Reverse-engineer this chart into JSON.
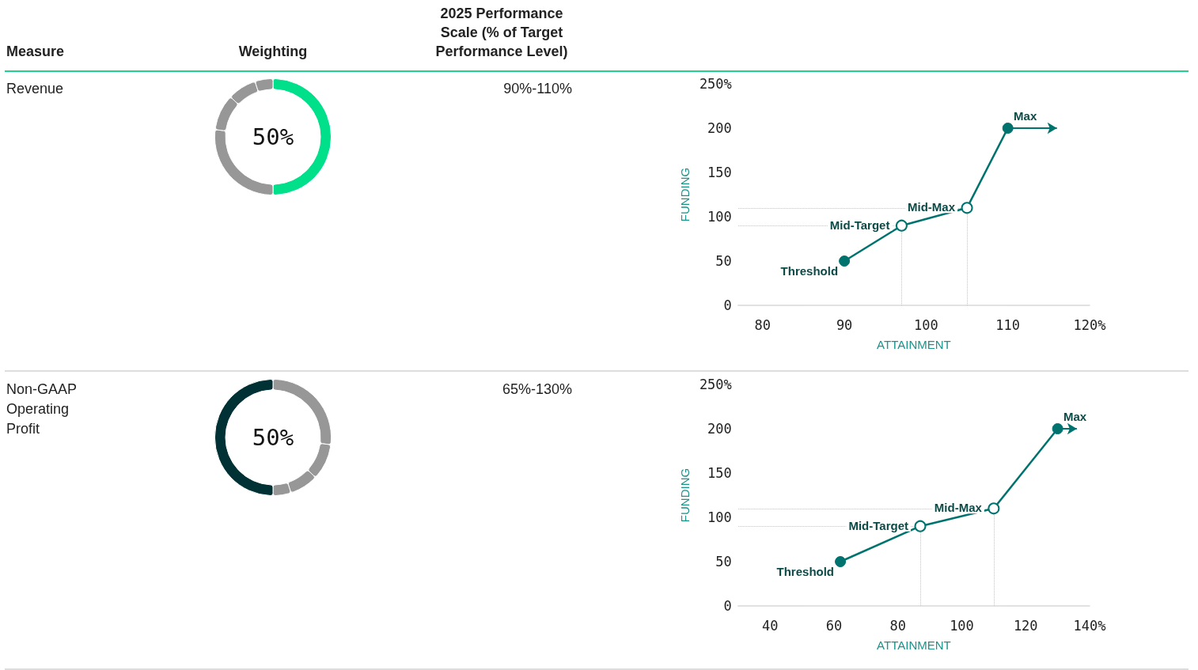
{
  "chart_data": [
    {
      "type": "other",
      "annotations": [
        "Measure",
        "Weighting",
        "2025 Performance Scale (% of Target Performance Level)"
      ]
    },
    {
      "type": "other",
      "annotations": [
        "Revenue",
        "90%-110%"
      ]
    },
    {
      "type": "donut",
      "categories": [
        null,
        null,
        null,
        null,
        null
      ],
      "values": [
        50,
        27,
        10,
        8,
        5
      ],
      "colors": [
        "#00e08a",
        "#979797",
        "#979797",
        "#979797",
        "#979797"
      ],
      "value_labels": [
        "50%",
        null,
        null,
        null,
        null
      ]
    },
    {
      "type": "line",
      "xlabel": "ATTAINMENT",
      "ylabel": "FUNDING",
      "xlim": [
        77,
        120
      ],
      "xticks": [
        80,
        90,
        100,
        110,
        {
          "value": 120,
          "label": "120%"
        }
      ],
      "ylim": [
        0,
        250
      ],
      "yticks": [
        0,
        50,
        100,
        150,
        200,
        {
          "value": 250,
          "label": "250%"
        }
      ],
      "grid": false,
      "marker": "circle",
      "series": [
        {
          "x": [
            90,
            97,
            105,
            110
          ],
          "values": [
            50,
            90,
            110,
            200
          ],
          "color": "#00736f"
        }
      ],
      "ref_lines": [
        {
          "axis": "y",
          "value": 90,
          "color": "#7ee6c2",
          "line_style": "dotted"
        },
        {
          "axis": "y",
          "value": 110,
          "color": "#7ee6c2",
          "line_style": "dotted"
        },
        {
          "axis": "x",
          "value": 97,
          "color": "#7ee6c2",
          "line_style": "dotted"
        },
        {
          "axis": "x",
          "value": 105,
          "color": "#7ee6c2",
          "line_style": "dotted"
        }
      ],
      "annotations": [
        {
          "text": "Threshold",
          "x": 90,
          "y": 50
        },
        {
          "text": "Mid-Target",
          "x": 97,
          "y": 90
        },
        {
          "text": "Mid-Max",
          "x": 105,
          "y": 110
        },
        {
          "text": "Max",
          "x": 110,
          "y": 200
        }
      ]
    },
    {
      "type": "other",
      "annotations": [
        "Non-GAAP Operating Profit",
        "65%-130%"
      ]
    },
    {
      "type": "donut",
      "categories": [
        null,
        null,
        null,
        null,
        null
      ],
      "values": [
        27,
        10,
        8,
        5,
        50
      ],
      "colors": [
        "#979797",
        "#979797",
        "#979797",
        "#979797",
        "#003135"
      ],
      "value_labels": [
        null,
        null,
        null,
        null,
        "50%"
      ]
    },
    {
      "type": "line",
      "xlabel": "ATTAINMENT",
      "ylabel": "FUNDING",
      "xlim": [
        30,
        140
      ],
      "xticks": [
        40,
        60,
        80,
        100,
        120,
        {
          "value": 140,
          "label": "140%"
        }
      ],
      "ylim": [
        0,
        250
      ],
      "yticks": [
        0,
        50,
        100,
        150,
        200,
        {
          "value": 250,
          "label": "250%"
        }
      ],
      "grid": false,
      "marker": "circle",
      "series": [
        {
          "x": [
            62,
            87,
            110,
            130
          ],
          "values": [
            50,
            90,
            110,
            200
          ],
          "color": "#00736f"
        }
      ],
      "ref_lines": [
        {
          "axis": "y",
          "value": 90,
          "color": "#7ee6c2",
          "line_style": "dotted"
        },
        {
          "axis": "y",
          "value": 110,
          "color": "#7ee6c2",
          "line_style": "dotted"
        },
        {
          "axis": "x",
          "value": 87,
          "color": "#7ee6c2",
          "line_style": "dotted"
        },
        {
          "axis": "x",
          "value": 110,
          "color": "#7ee6c2",
          "line_style": "dotted"
        }
      ],
      "annotations": [
        {
          "text": "Threshold",
          "x": 62,
          "y": 50
        },
        {
          "text": "Mid-Target",
          "x": 87,
          "y": 90
        },
        {
          "text": "Mid-Max",
          "x": 110,
          "y": 110
        },
        {
          "text": "Max",
          "x": 130,
          "y": 200
        }
      ]
    }
  ]
}
